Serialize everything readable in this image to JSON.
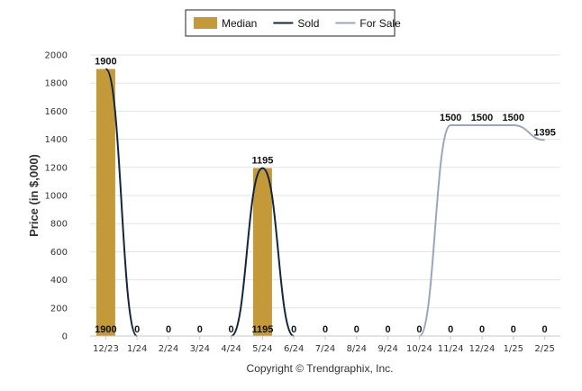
{
  "chart_data": {
    "type": "bar",
    "categories": [
      "12/23",
      "1/24",
      "2/24",
      "3/24",
      "4/24",
      "5/24",
      "6/24",
      "7/24",
      "8/24",
      "9/24",
      "10/24",
      "11/24",
      "12/24",
      "1/25",
      "2/25"
    ],
    "series": [
      {
        "name": "Median",
        "kind": "bar",
        "color": "#C3993A",
        "values": [
          1900,
          0,
          0,
          0,
          0,
          1195,
          0,
          0,
          0,
          0,
          0,
          0,
          0,
          0,
          0
        ]
      },
      {
        "name": "Sold",
        "kind": "line",
        "color": "#14263F",
        "values": [
          1900,
          0,
          null,
          null,
          0,
          1195,
          0,
          null,
          null,
          null,
          null,
          null,
          null,
          null,
          null
        ]
      },
      {
        "name": "For Sale",
        "kind": "line",
        "color": "#9BA6BE",
        "values": [
          null,
          null,
          null,
          null,
          null,
          null,
          null,
          null,
          null,
          null,
          0,
          1500,
          1500,
          1500,
          1395
        ]
      }
    ],
    "data_labels": [
      {
        "x": "12/23",
        "label": "1900",
        "pos": "top"
      },
      {
        "x": "12/23",
        "label": "1900",
        "pos": "base"
      },
      {
        "x": "1/24",
        "label": "0",
        "pos": "base"
      },
      {
        "x": "2/24",
        "label": "0",
        "pos": "base"
      },
      {
        "x": "3/24",
        "label": "0",
        "pos": "base"
      },
      {
        "x": "4/24",
        "label": "0",
        "pos": "base"
      },
      {
        "x": "5/24",
        "label": "1195",
        "pos": "top"
      },
      {
        "x": "5/24",
        "label": "1195",
        "pos": "base"
      },
      {
        "x": "6/24",
        "label": "0",
        "pos": "base"
      },
      {
        "x": "7/24",
        "label": "0",
        "pos": "base"
      },
      {
        "x": "8/24",
        "label": "0",
        "pos": "base"
      },
      {
        "x": "9/24",
        "label": "0",
        "pos": "base"
      },
      {
        "x": "10/24",
        "label": "0",
        "pos": "base"
      },
      {
        "x": "11/24",
        "label": "0",
        "pos": "base"
      },
      {
        "x": "11/24",
        "label": "1500",
        "pos": "top"
      },
      {
        "x": "12/24",
        "label": "0",
        "pos": "base"
      },
      {
        "x": "12/24",
        "label": "1500",
        "pos": "top"
      },
      {
        "x": "1/25",
        "label": "0",
        "pos": "base"
      },
      {
        "x": "1/25",
        "label": "1500",
        "pos": "top"
      },
      {
        "x": "2/25",
        "label": "0",
        "pos": "base"
      },
      {
        "x": "2/25",
        "label": "1395",
        "pos": "top"
      }
    ],
    "ylabel": "Price (in $,000)",
    "xlabel": "",
    "ylim": [
      0,
      2000
    ],
    "yticks": [
      0,
      200,
      400,
      600,
      800,
      1000,
      1200,
      1400,
      1600,
      1800,
      2000
    ],
    "grid": true,
    "legend_position": "top-center",
    "footer": "Copyright © Trendgraphix, Inc."
  }
}
